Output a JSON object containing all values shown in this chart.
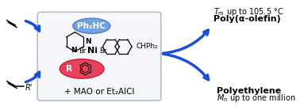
{
  "bg_color": "#ffffff",
  "box_color": "#b0bcd0",
  "box_facecolor": "#f5f7fa",
  "blue_arrow_color": "#1a4fd6",
  "blue_ellipse_face": "#6699dd",
  "blue_ellipse_edge": "#4477cc",
  "red_ellipse_face": "#e83050",
  "red_ellipse_edge": "#cc1030",
  "title_right_top": "Polyethylene",
  "subtitle_right_top": "$M_{\\mathrm{n}}$ up to one million",
  "title_right_bot": "Poly(α-olefin)",
  "subtitle_right_bot": "$T_{\\mathrm{m}}$ up to 105.5 °C",
  "label_box_bottom": "+ MAO or Et₂AlCl",
  "label_blue_ellipse": "Ph₂HC",
  "label_red_ellipse": "R",
  "label_chph2": "CHPh₂",
  "label_ni": "Ni",
  "label_br1": "Br",
  "label_br2": "Br",
  "figsize": [
    3.78,
    1.39
  ],
  "dpi": 100
}
